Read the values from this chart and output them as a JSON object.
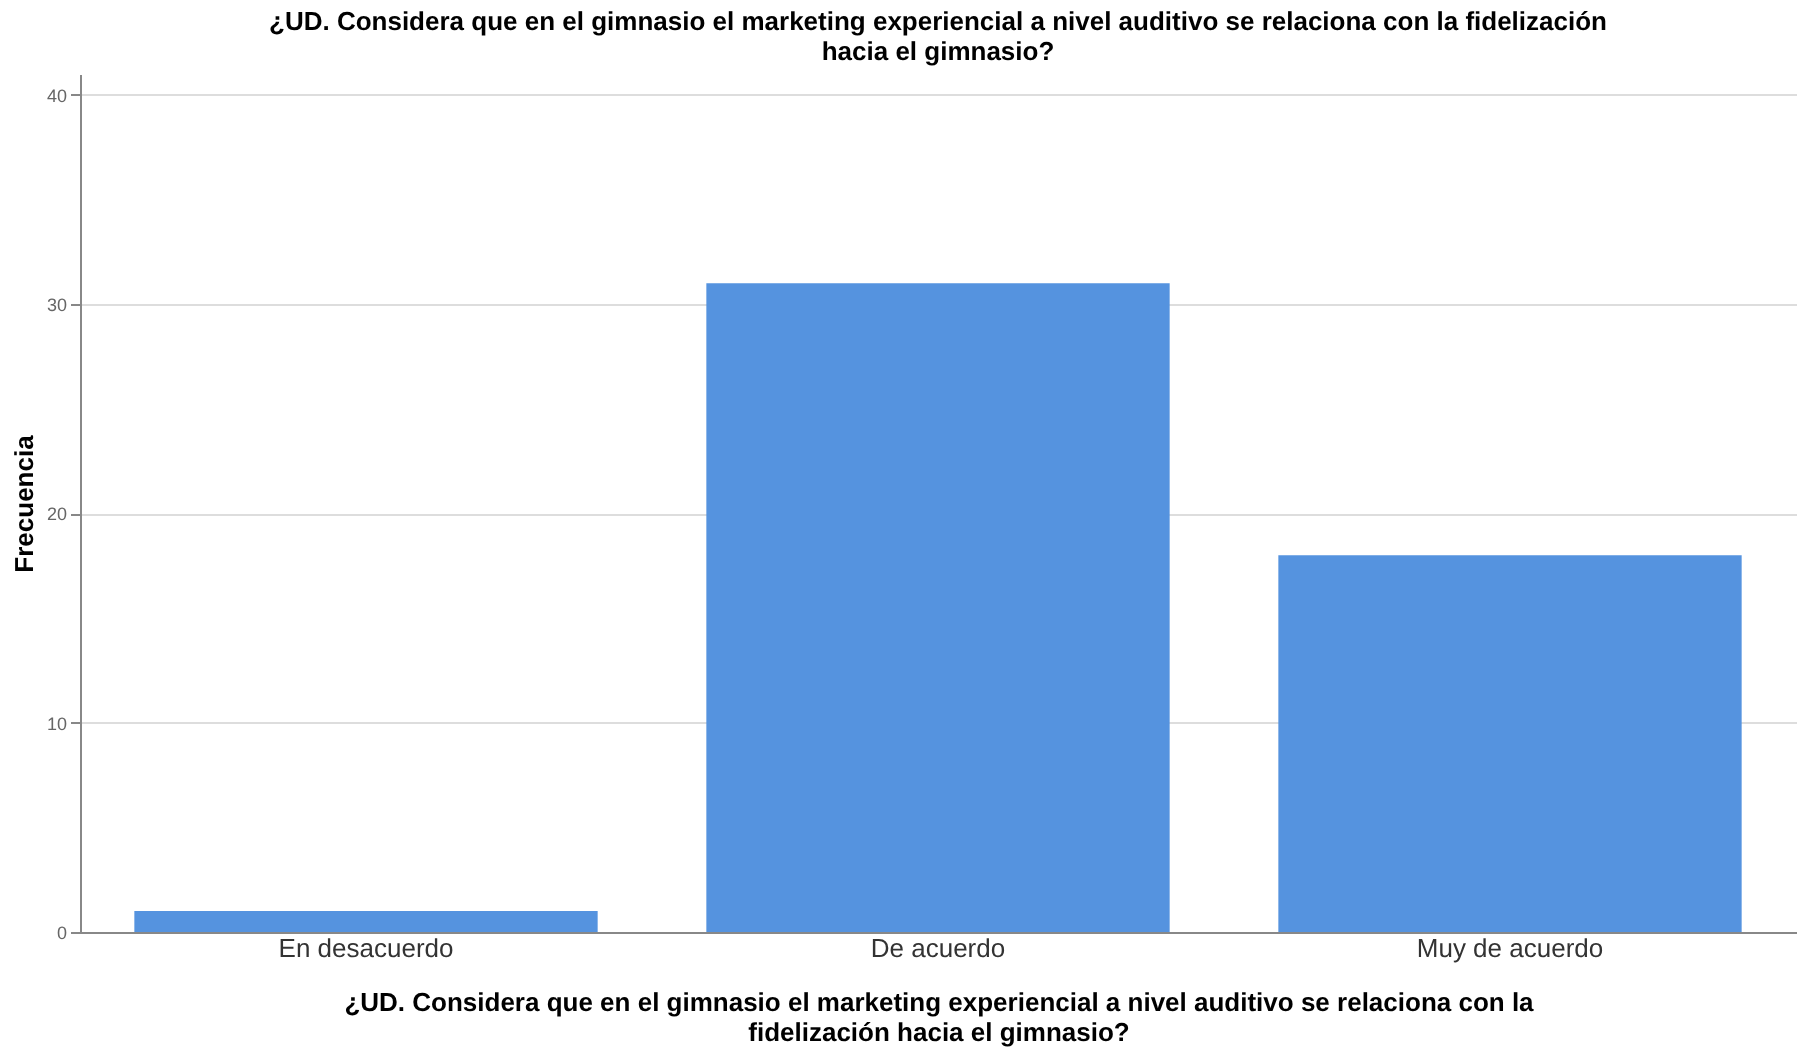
{
  "chart_data": {
    "type": "bar",
    "title": "¿UD. Considera que en el gimnasio el marketing experiencial a nivel auditivo se relaciona con la fidelización\nhacia el gimnasio?",
    "xlabel": "¿UD. Considera que en el gimnasio el marketing experiencial a nivel auditivo se relaciona con la\nfidelización hacia el gimnasio?",
    "ylabel": "Frecuencia",
    "categories": [
      "En desacuerdo",
      "De acuerdo",
      "Muy de acuerdo"
    ],
    "values": [
      1,
      31,
      18
    ],
    "color": "#5593df",
    "ylim": [
      0,
      41
    ],
    "yticks": [
      0,
      10,
      20,
      30,
      40
    ],
    "grid": "y"
  }
}
